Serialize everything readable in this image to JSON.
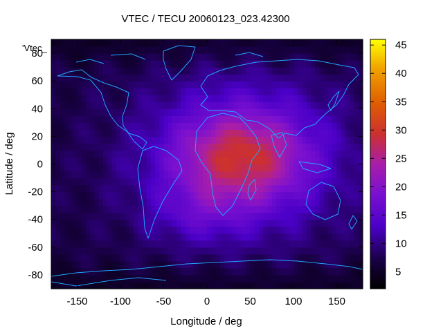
{
  "chart_data": {
    "type": "heatmap",
    "title": "VTEC / TECU 20060123_023.42300",
    "series_label": "'Vtec_",
    "xlabel": "Longitude / deg",
    "ylabel": "Latitude / deg",
    "xlim": [
      -180,
      180
    ],
    "ylim": [
      -90,
      90
    ],
    "x_ticks": [
      -150,
      -100,
      -50,
      0,
      50,
      100,
      150
    ],
    "y_ticks": [
      -80,
      -60,
      -40,
      -20,
      0,
      20,
      40,
      60,
      80
    ],
    "color_range": [
      2,
      46
    ],
    "colorbar_ticks": [
      5,
      10,
      15,
      20,
      25,
      30,
      35,
      40,
      45
    ],
    "peak_region": {
      "lon_center": 40,
      "lat_center": 5,
      "peak_value": 30
    },
    "overlay": "coastlines"
  }
}
